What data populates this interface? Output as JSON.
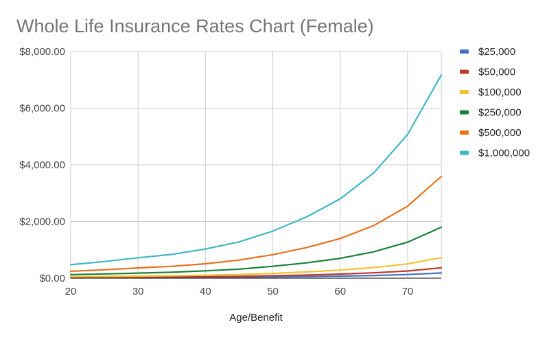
{
  "chart_data": {
    "type": "line",
    "title": "Whole Life Insurance Rates Chart (Female)",
    "xlabel": "Age/Benefit",
    "ylabel": "",
    "x": [
      20,
      25,
      30,
      35,
      40,
      45,
      50,
      55,
      60,
      65,
      70,
      75
    ],
    "xlim": [
      20,
      75
    ],
    "ylim": [
      0,
      8000
    ],
    "x_ticks": [
      "20",
      "30",
      "40",
      "50",
      "60",
      "70"
    ],
    "x_tick_values": [
      20,
      30,
      40,
      50,
      60,
      70
    ],
    "y_ticks": [
      "$0.00",
      "$2,000.00",
      "$4,000.00",
      "$6,000.00",
      "$8,000.00"
    ],
    "y_tick_values": [
      0,
      2000,
      4000,
      6000,
      8000
    ],
    "grid": true,
    "legend_position": "right",
    "series": [
      {
        "name": "$25,000",
        "color": "#4472c4",
        "values": [
          13,
          15,
          18,
          21,
          26,
          33,
          43,
          56,
          72,
          95,
          128,
          185
        ]
      },
      {
        "name": "$50,000",
        "color": "#c0392b",
        "values": [
          25,
          30,
          36,
          43,
          52,
          66,
          86,
          110,
          145,
          190,
          255,
          365
        ]
      },
      {
        "name": "$100,000",
        "color": "#f1c232",
        "values": [
          50,
          60,
          72,
          85,
          105,
          130,
          170,
          220,
          285,
          375,
          505,
          725
        ]
      },
      {
        "name": "$250,000",
        "color": "#188038",
        "values": [
          125,
          150,
          180,
          210,
          260,
          320,
          420,
          540,
          700,
          930,
          1270,
          1800
        ]
      },
      {
        "name": "$500,000",
        "color": "#e8711a",
        "values": [
          245,
          295,
          360,
          420,
          510,
          640,
          830,
          1080,
          1400,
          1860,
          2540,
          3590
        ]
      },
      {
        "name": "$1,000,000",
        "color": "#3fb8c4",
        "values": [
          475,
          590,
          720,
          840,
          1030,
          1280,
          1660,
          2160,
          2800,
          3720,
          5070,
          7170
        ]
      }
    ]
  }
}
